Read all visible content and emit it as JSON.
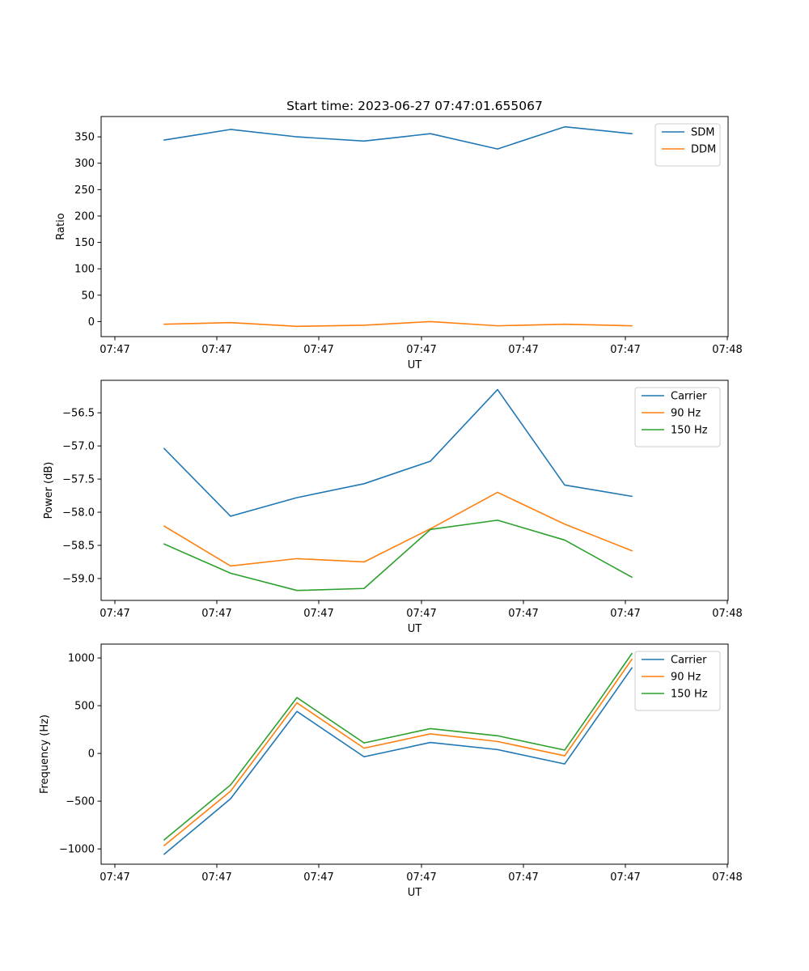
{
  "figure": {
    "title": "Start time: 2023-06-27 07:47:01.655067"
  },
  "chart_data": [
    {
      "type": "line",
      "xlabel": "UT",
      "ylabel": "Ratio",
      "x_tick_labels": [
        "07:47",
        "07:47",
        "07:47",
        "07:47",
        "07:47",
        "07:47",
        "07:48"
      ],
      "y_ticks": [
        0,
        50,
        100,
        150,
        200,
        250,
        300,
        350
      ],
      "y_tick_labels": [
        "0",
        "50",
        "100",
        "150",
        "200",
        "250",
        "300",
        "350"
      ],
      "ylim": [
        -28.5,
        388.5
      ],
      "legend_position": "top-right",
      "series": [
        {
          "name": "SDM",
          "color": "#1f77b4",
          "values": [
            344,
            364,
            350,
            342,
            356,
            327,
            369,
            356
          ]
        },
        {
          "name": "DDM",
          "color": "#ff7f0e",
          "values": [
            -5,
            -2,
            -9,
            -7,
            0,
            -8,
            -5,
            -8
          ]
        }
      ]
    },
    {
      "type": "line",
      "xlabel": "UT",
      "ylabel": "Power (dB)",
      "x_tick_labels": [
        "07:47",
        "07:47",
        "07:47",
        "07:47",
        "07:47",
        "07:47",
        "07:48"
      ],
      "y_ticks": [
        -59.0,
        -58.5,
        -58.0,
        -57.5,
        -57.0,
        -56.5
      ],
      "y_tick_labels": [
        "−59.0",
        "−58.5",
        "−58.0",
        "−57.5",
        "−57.0",
        "−56.5"
      ],
      "ylim": [
        -59.33,
        -56.01
      ],
      "legend_position": "top-right",
      "series": [
        {
          "name": "Carrier",
          "color": "#1f77b4",
          "values": [
            -57.04,
            -58.06,
            -57.78,
            -57.57,
            -57.23,
            -56.15,
            -57.59,
            -57.76
          ]
        },
        {
          "name": "90 Hz",
          "color": "#ff7f0e",
          "values": [
            -58.21,
            -58.81,
            -58.7,
            -58.75,
            -58.25,
            -57.7,
            -58.18,
            -58.58
          ]
        },
        {
          "name": "150 Hz",
          "color": "#2ca02c",
          "values": [
            -58.48,
            -58.92,
            -59.18,
            -59.15,
            -58.26,
            -58.12,
            -58.42,
            -58.98
          ]
        }
      ]
    },
    {
      "type": "line",
      "xlabel": "UT",
      "ylabel": "Frequency (Hz)",
      "x_tick_labels": [
        "07:47",
        "07:47",
        "07:47",
        "07:47",
        "07:47",
        "07:47",
        "07:48"
      ],
      "y_ticks": [
        -1000,
        -500,
        0,
        500,
        1000
      ],
      "y_tick_labels": [
        "−1000",
        "−500",
        "0",
        "500",
        "1000"
      ],
      "ylim": [
        -1160,
        1145
      ],
      "legend_position": "top-right",
      "series": [
        {
          "name": "Carrier",
          "color": "#1f77b4",
          "values": [
            -1055,
            -475,
            440,
            -35,
            115,
            40,
            -110,
            895
          ]
        },
        {
          "name": "90 Hz",
          "color": "#ff7f0e",
          "values": [
            -965,
            -395,
            530,
            55,
            205,
            125,
            -25,
            985
          ]
        },
        {
          "name": "150 Hz",
          "color": "#2ca02c",
          "values": [
            -905,
            -330,
            585,
            110,
            260,
            185,
            35,
            1045
          ]
        }
      ]
    }
  ]
}
